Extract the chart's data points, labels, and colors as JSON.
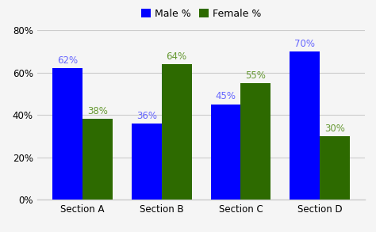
{
  "categories": [
    "Section A",
    "Section B",
    "Section C",
    "Section D"
  ],
  "male_values": [
    62,
    36,
    45,
    70
  ],
  "female_values": [
    38,
    64,
    55,
    30
  ],
  "male_color": "#0000ff",
  "female_color": "#2d6a00",
  "male_label": "Male %",
  "female_label": "Female %",
  "male_text_color": "#6666ff",
  "female_text_color": "#669933",
  "ylim": [
    0,
    80
  ],
  "yticks": [
    0,
    20,
    40,
    60,
    80
  ],
  "background_color": "#f5f5f5",
  "grid_color": "#cccccc",
  "bar_width": 0.38,
  "label_fontsize": 8.5,
  "tick_fontsize": 8.5,
  "legend_fontsize": 9
}
